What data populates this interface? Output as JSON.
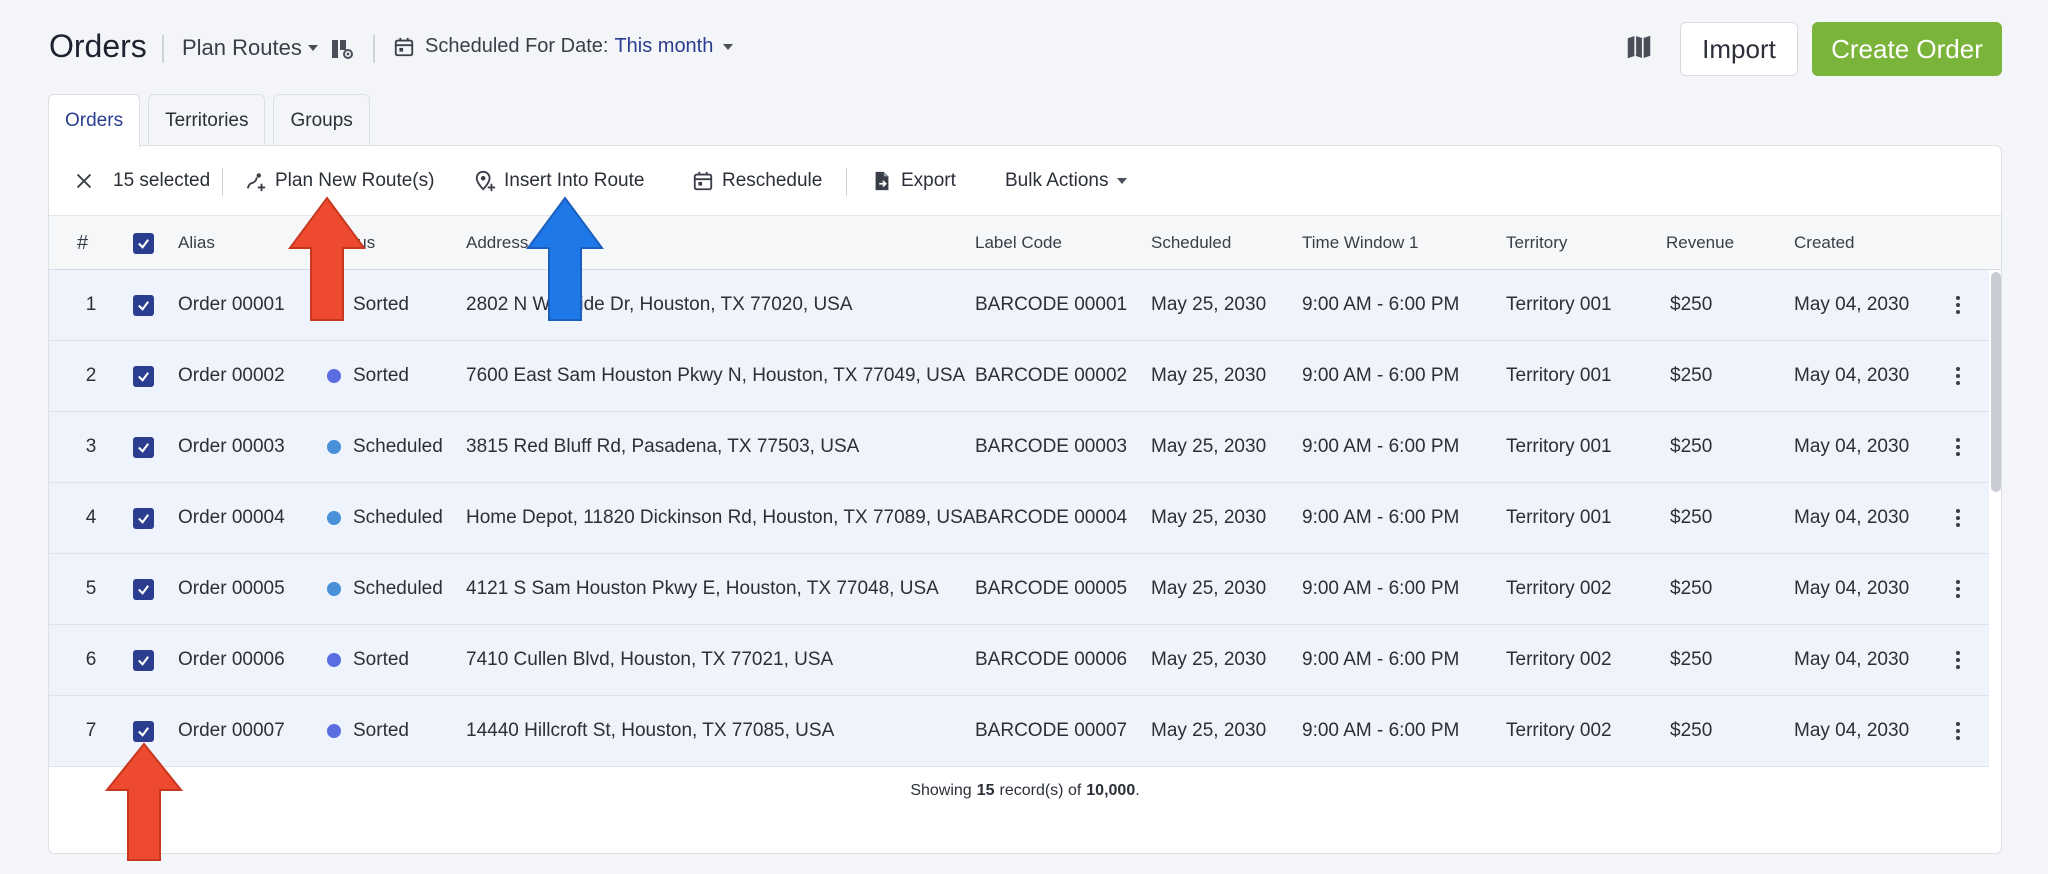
{
  "header": {
    "title": "Orders",
    "plan_routes": "Plan Routes",
    "date_filter_label": "Scheduled For Date:",
    "date_filter_value": "This month",
    "import_label": "Import",
    "create_label": "Create Order"
  },
  "tabs": [
    {
      "label": "Orders",
      "active": true
    },
    {
      "label": "Territories",
      "active": false
    },
    {
      "label": "Groups",
      "active": false
    }
  ],
  "toolbar": {
    "selected": "15 selected",
    "plan_new": "Plan New Route(s)",
    "insert": "Insert Into Route",
    "reschedule": "Reschedule",
    "export": "Export",
    "bulk": "Bulk Actions"
  },
  "columns": {
    "num": "#",
    "alias": "Alias",
    "status": "Status",
    "address": "Address",
    "label_code": "Label Code",
    "scheduled": "Scheduled",
    "time_window": "Time Window 1",
    "territory": "Territory",
    "revenue": "Revenue",
    "created": "Created"
  },
  "status_colors": {
    "Sorted": "#5b6ee1",
    "Scheduled": "#4a90d9"
  },
  "rows": [
    {
      "num": "1",
      "alias": "Order 00001",
      "status": "Sorted",
      "address": "2802 N Wayside Dr, Houston, TX 77020, USA",
      "label_code": "BARCODE 00001",
      "scheduled": "May 25, 2030",
      "time_window": "9:00 AM - 6:00 PM",
      "territory": "Territory 001",
      "revenue": "$250",
      "created": "May 04, 2030"
    },
    {
      "num": "2",
      "alias": "Order 00002",
      "status": "Sorted",
      "address": "7600 East Sam Houston Pkwy N, Houston, TX 77049, USA",
      "label_code": "BARCODE 00002",
      "scheduled": "May 25, 2030",
      "time_window": "9:00 AM - 6:00 PM",
      "territory": "Territory 001",
      "revenue": "$250",
      "created": "May 04, 2030"
    },
    {
      "num": "3",
      "alias": "Order 00003",
      "status": "Scheduled",
      "address": "3815 Red Bluff Rd, Pasadena, TX 77503, USA",
      "label_code": "BARCODE 00003",
      "scheduled": "May 25, 2030",
      "time_window": "9:00 AM - 6:00 PM",
      "territory": "Territory 001",
      "revenue": "$250",
      "created": "May 04, 2030"
    },
    {
      "num": "4",
      "alias": "Order 00004",
      "status": "Scheduled",
      "address": "Home Depot, 11820 Dickinson Rd, Houston, TX 77089, USA",
      "label_code": "BARCODE 00004",
      "scheduled": "May 25, 2030",
      "time_window": "9:00 AM - 6:00 PM",
      "territory": "Territory 001",
      "revenue": "$250",
      "created": "May 04, 2030"
    },
    {
      "num": "5",
      "alias": "Order 00005",
      "status": "Scheduled",
      "address": "4121 S Sam Houston Pkwy E, Houston, TX 77048, USA",
      "label_code": "BARCODE 00005",
      "scheduled": "May 25, 2030",
      "time_window": "9:00 AM - 6:00 PM",
      "territory": "Territory 002",
      "revenue": "$250",
      "created": "May 04, 2030"
    },
    {
      "num": "6",
      "alias": "Order 00006",
      "status": "Sorted",
      "address": "7410 Cullen Blvd, Houston, TX 77021, USA",
      "label_code": "BARCODE 00006",
      "scheduled": "May 25, 2030",
      "time_window": "9:00 AM - 6:00 PM",
      "territory": "Territory 002",
      "revenue": "$250",
      "created": "May 04, 2030"
    },
    {
      "num": "7",
      "alias": "Order 00007",
      "status": "Sorted",
      "address": "14440 Hillcroft St, Houston, TX 77085, USA",
      "label_code": "BARCODE 00007",
      "scheduled": "May 25, 2030",
      "time_window": "9:00 AM - 6:00 PM",
      "territory": "Territory 002",
      "revenue": "$250",
      "created": "May 04, 2030"
    }
  ],
  "footer": {
    "prefix": "Showing",
    "count": "15",
    "middle": "record(s) of",
    "total": "10,000",
    "suffix": "."
  },
  "annotation_colors": {
    "red": "#ee4a2f",
    "blue": "#1f78e8"
  }
}
